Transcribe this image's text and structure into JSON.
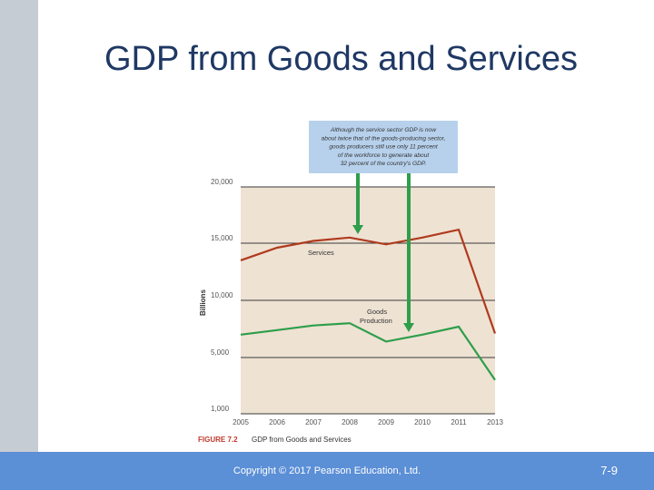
{
  "slide": {
    "title": "GDP from Goods and Services"
  },
  "footer": {
    "copyright": "Copyright © 2017 Pearson Education, Ltd.",
    "page_number": "7-9"
  },
  "colors": {
    "title": "#1f3864",
    "footer_bar": "#5b8fd6",
    "side_bar": "#c5ccd3",
    "plot_background": "#eee2d3",
    "services_line": "#b03a1e",
    "goods_line": "#2e9e4a",
    "callout_box": "#b7d1ec",
    "arrows": "#2e9e4a"
  },
  "chart_data": {
    "type": "line",
    "figure_label": "FIGURE 7.2",
    "caption": "GDP from Goods and Services",
    "ylabel": "Billions",
    "xlabel": "",
    "x": [
      "2005",
      "2006",
      "2007",
      "2008",
      "2009",
      "2010",
      "2011",
      "2013"
    ],
    "y_ticks": [
      "1,000",
      "5,000",
      "10,000",
      "15,000",
      "20,000"
    ],
    "ylim": [
      1000,
      20000
    ],
    "grid": "horizontal",
    "series": [
      {
        "name": "Services",
        "values": [
          13500,
          14600,
          15200,
          15500,
          14900,
          15500,
          16200,
          7100
        ],
        "color": "#b03a1e"
      },
      {
        "name": "Goods Production",
        "values": [
          7000,
          7400,
          7800,
          8000,
          6400,
          7000,
          7700,
          3400
        ],
        "color": "#2e9e4a"
      }
    ],
    "annotation": [
      "Although the service sector GDP is now",
      "about twice that of the goods-producing sector,",
      "goods producers still use only 11 percent",
      "of the workforce to generate about",
      "32 percent of the country's GDP."
    ]
  }
}
